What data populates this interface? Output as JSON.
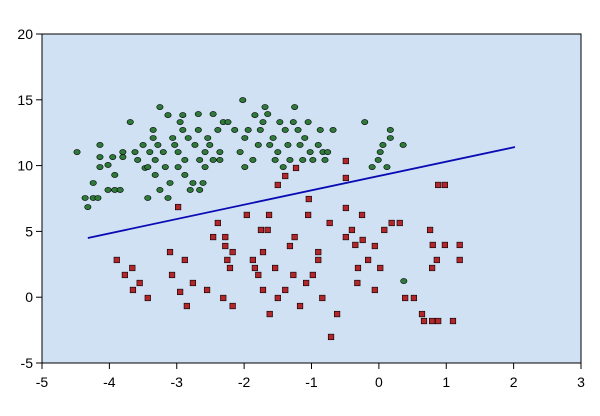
{
  "chart_data": {
    "type": "scatter",
    "xlim": [
      -5,
      3
    ],
    "xticks": [
      -5,
      -4,
      -3,
      -2,
      -1,
      0,
      1,
      2,
      3
    ],
    "ylim": [
      -5,
      20
    ],
    "yticks": [
      -5,
      0,
      5,
      10,
      15,
      20
    ],
    "background": "#cfe1f3",
    "series": [
      {
        "mode": "markers",
        "marker": "circle",
        "color": "#2f7a3a",
        "x": [
          -4.48,
          -4.36,
          -4.32,
          -4.24,
          -4.24,
          -4.17,
          -4.14,
          -4.14,
          -4.14,
          -4.02,
          -4.02,
          -3.95,
          -3.92,
          -3.84,
          -3.8,
          -3.8,
          -3.92,
          -3.69,
          -3.62,
          -3.58,
          -3.5,
          -3.47,
          -3.43,
          -3.43,
          -3.4,
          -3.35,
          -3.35,
          -3.32,
          -3.32,
          -3.28,
          -3.25,
          -3.25,
          -3.2,
          -3.17,
          -3.13,
          -3.13,
          -3.1,
          -3.06,
          -3.03,
          -2.98,
          -2.98,
          -2.95,
          -2.91,
          -2.91,
          -2.88,
          -2.88,
          -2.83,
          -2.8,
          -2.76,
          -2.73,
          -2.68,
          -2.68,
          -2.66,
          -2.66,
          -2.61,
          -2.58,
          -2.58,
          -2.54,
          -2.51,
          -2.46,
          -2.46,
          -2.39,
          -2.36,
          -2.36,
          -2.31,
          -2.24,
          -2.14,
          -2.06,
          -2.02,
          -1.99,
          -1.99,
          -1.94,
          -1.87,
          -1.84,
          -1.79,
          -1.76,
          -1.72,
          -1.69,
          -1.65,
          -1.62,
          -1.57,
          -1.54,
          -1.5,
          -1.47,
          -1.42,
          -1.39,
          -1.35,
          -1.32,
          -1.27,
          -1.25,
          -1.2,
          -1.17,
          -1.13,
          -1.1,
          -1.05,
          -1.02,
          -0.98,
          -0.9,
          -0.87,
          -0.83,
          -0.8,
          -0.76,
          -0.68,
          -0.21,
          -0.1,
          -0.01,
          0.02,
          0.06,
          0.12,
          0.17,
          0.17,
          0.36,
          0.37
        ],
        "values": [
          11.03,
          7.54,
          6.85,
          7.54,
          8.68,
          7.54,
          11.57,
          10.65,
          9.89,
          8.15,
          10.05,
          10.65,
          8.15,
          8.15,
          10.65,
          11.03,
          9.29,
          13.31,
          11.03,
          10.43,
          11.57,
          9.82,
          7.54,
          9.89,
          11.03,
          12.71,
          12.1,
          10.43,
          9.29,
          11.57,
          14.45,
          8.15,
          11.03,
          9.89,
          13.84,
          7.54,
          8.68,
          12.1,
          11.57,
          11.03,
          9.89,
          13.31,
          13.84,
          12.71,
          10.43,
          9.29,
          12.1,
          8.15,
          8.68,
          11.57,
          13.92,
          12.71,
          10.43,
          8.15,
          8.68,
          11.03,
          9.89,
          12.1,
          11.57,
          10.43,
          13.92,
          12.71,
          11.03,
          10.43,
          13.31,
          13.31,
          12.71,
          11.03,
          14.98,
          12.1,
          9.89,
          12.71,
          10.43,
          13.84,
          11.57,
          12.71,
          13.31,
          14.45,
          13.92,
          11.57,
          12.1,
          10.43,
          11.03,
          13.31,
          9.89,
          12.71,
          11.57,
          10.43,
          13.31,
          14.45,
          12.71,
          11.57,
          10.43,
          12.1,
          13.31,
          11.03,
          10.43,
          11.57,
          12.71,
          11.03,
          10.43,
          11.03,
          12.71,
          13.31,
          9.89,
          10.43,
          11.03,
          11.57,
          9.89,
          12.71,
          12.1,
          11.57,
          1.23
        ]
      },
      {
        "mode": "markers",
        "marker": "square",
        "color": "#b3262a",
        "x": [
          -3.89,
          -3.77,
          -3.66,
          -3.65,
          -3.55,
          -3.43,
          -3.1,
          -3.07,
          -2.98,
          -2.95,
          -2.88,
          -2.85,
          -2.76,
          -2.55,
          -2.46,
          -2.39,
          -2.31,
          -2.28,
          -2.28,
          -2.25,
          -2.21,
          -2.17,
          -2.17,
          -1.96,
          -1.87,
          -1.84,
          -1.79,
          -1.75,
          -1.72,
          -1.72,
          -1.65,
          -1.63,
          -1.62,
          -1.54,
          -1.5,
          -1.5,
          -1.39,
          -1.32,
          -1.27,
          -1.25,
          -1.17,
          -1.08,
          -1.05,
          -1.04,
          -0.98,
          -0.9,
          -0.9,
          -0.84,
          -0.73,
          -0.71,
          -0.62,
          -0.49,
          -0.49,
          -0.49,
          -0.49,
          -0.4,
          -0.35,
          -0.32,
          -0.31,
          -0.25,
          -0.24,
          -0.16,
          -0.06,
          -0.06,
          0.02,
          0.08,
          0.19,
          0.31,
          0.39,
          0.52,
          0.64,
          0.67,
          0.76,
          0.79,
          0.8,
          0.79,
          0.86,
          0.88,
          0.88,
          0.98,
          0.98,
          1.1,
          1.2,
          1.2,
          -1.39,
          -1.23
        ],
        "values": [
          2.83,
          1.69,
          2.22,
          0.55,
          1.08,
          -0.06,
          3.43,
          1.69,
          6.85,
          0.4,
          2.83,
          -0.67,
          1.08,
          0.55,
          4.57,
          5.64,
          -0.06,
          4.57,
          3.89,
          2.83,
          2.22,
          3.43,
          -0.67,
          6.25,
          2.83,
          2.22,
          1.69,
          5.11,
          3.43,
          0.55,
          5.11,
          6.25,
          -1.28,
          2.22,
          8.53,
          -0.06,
          0.55,
          3.89,
          1.69,
          4.57,
          -0.67,
          1.08,
          6.25,
          7.46,
          1.69,
          3.43,
          2.83,
          -0.06,
          5.64,
          -3.02,
          -1.28,
          6.78,
          9.06,
          10.35,
          4.57,
          5.11,
          3.97,
          1.08,
          2.22,
          6.25,
          4.35,
          2.83,
          0.55,
          3.89,
          2.22,
          5.11,
          5.64,
          5.64,
          -0.06,
          -0.06,
          -1.28,
          -1.81,
          5.11,
          -1.81,
          3.97,
          2.22,
          2.83,
          -1.81,
          8.53,
          8.53,
          3.97,
          -1.81,
          2.83,
          3.97,
          9.21,
          9.82
        ]
      },
      {
        "mode": "line",
        "color": "#0a0ab4",
        "x": [
          -4.32,
          2.02
        ],
        "values": [
          4.5,
          11.41
        ]
      }
    ]
  }
}
